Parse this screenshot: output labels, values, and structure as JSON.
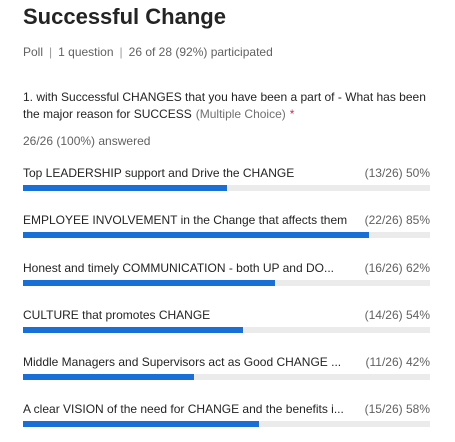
{
  "poll": {
    "title": "Successful Change",
    "type_label": "Poll",
    "question_count": "1 question",
    "participation": "26 of 28 (92%) participated"
  },
  "question": {
    "text": "1. with Successful CHANGES that you have been a part of - What has been the major reason for SUCCESS",
    "qtype": "(Multiple Choice)",
    "required_marker": "*",
    "answered": "26/26 (100%) answered"
  },
  "colors": {
    "bar_fill": "#1a6fd6",
    "bar_track": "#ebebeb",
    "required": "#c4314b"
  },
  "options": [
    {
      "label": "Top LEADERSHIP support and Drive the CHANGE",
      "stat": "(13/26) 50%",
      "percent": 50
    },
    {
      "label": "EMPLOYEE INVOLVEMENT in the Change that affects them",
      "stat": "(22/26) 85%",
      "percent": 85
    },
    {
      "label": "Honest and timely COMMUNICATION - both UP and DO...",
      "stat": "(16/26) 62%",
      "percent": 62
    },
    {
      "label": "CULTURE that promotes CHANGE",
      "stat": "(14/26) 54%",
      "percent": 54
    },
    {
      "label": "Middle Managers and Supervisors act as Good CHANGE ...",
      "stat": "(11/26) 42%",
      "percent": 42
    },
    {
      "label": "A clear VISION of the need for CHANGE and the benefits i...",
      "stat": "(15/26) 58%",
      "percent": 58
    }
  ]
}
